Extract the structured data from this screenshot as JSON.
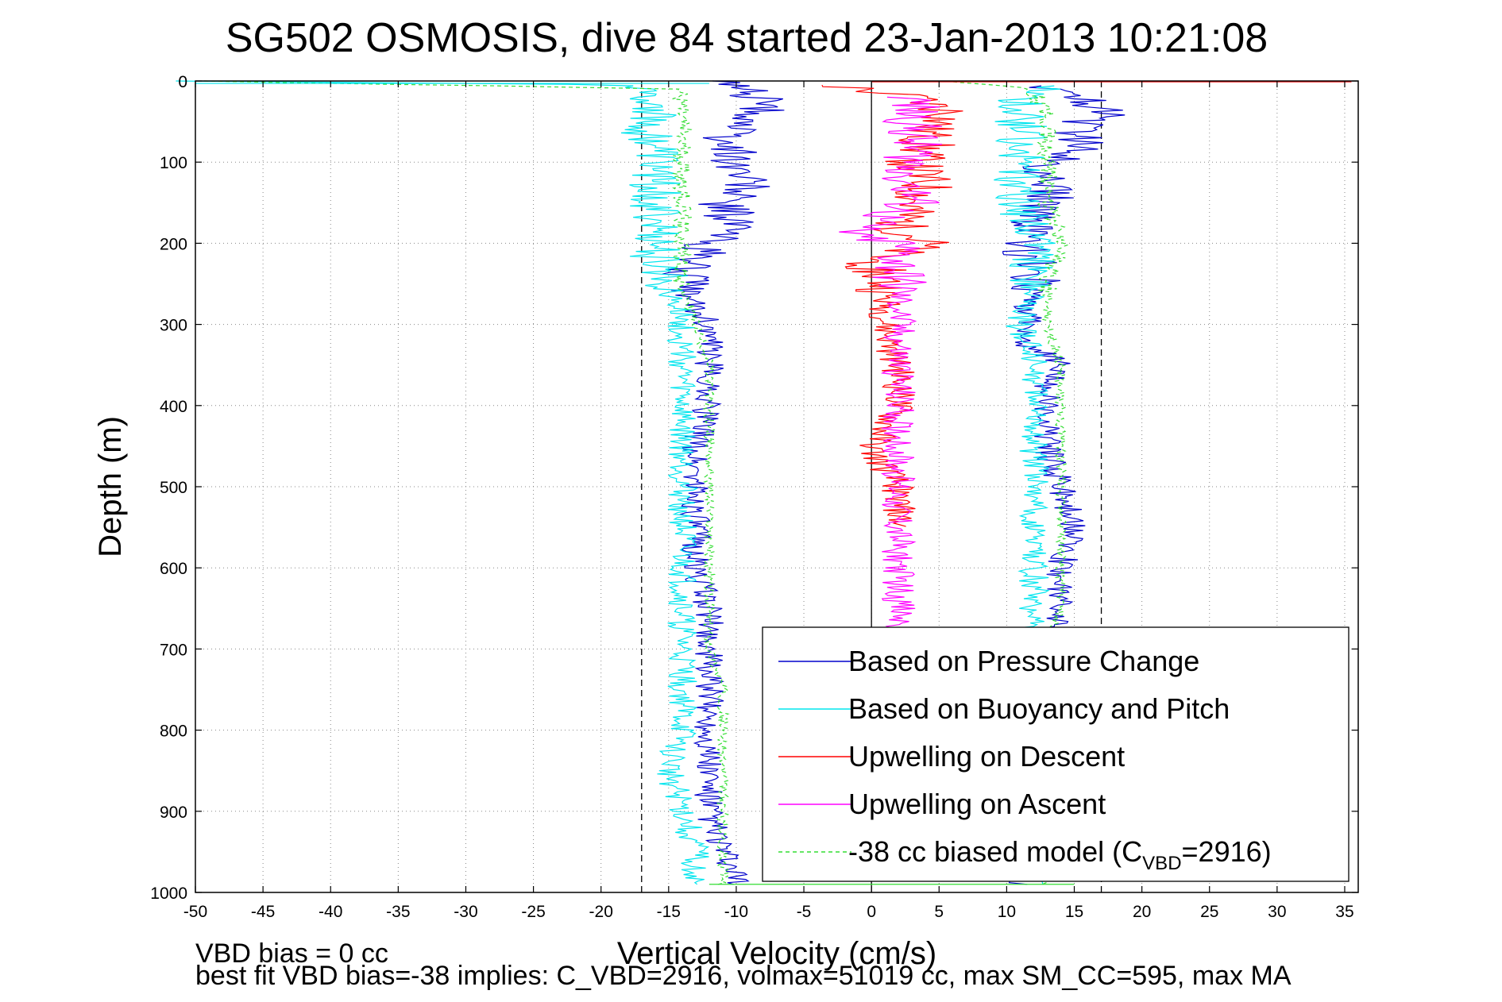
{
  "chart_data": {
    "type": "line",
    "title": "SG502 OSMOSIS, dive 84 started 23-Jan-2013 10:21:08",
    "xlabel": "Vertical Velocity (cm/s)",
    "ylabel": "Depth (m)",
    "xlim": [
      -50,
      36
    ],
    "ylim": [
      0,
      1000
    ],
    "y_reversed": true,
    "grid": true,
    "legend_position": "bottom-right",
    "x_ticks": [
      "-50",
      "-45",
      "-40",
      "-35",
      "-30",
      "-25",
      "-20",
      "-15",
      "-10",
      "-5",
      "0",
      "5",
      "10",
      "15",
      "20",
      "25",
      "30",
      "35"
    ],
    "y_ticks": [
      "0",
      "100",
      "200",
      "300",
      "400",
      "500",
      "600",
      "700",
      "800",
      "900",
      "1000"
    ],
    "x_tick_values": [
      -50,
      -45,
      -40,
      -35,
      -30,
      -25,
      -20,
      -15,
      -10,
      -5,
      0,
      5,
      10,
      15,
      20,
      25,
      30,
      35
    ],
    "y_tick_values": [
      0,
      100,
      200,
      300,
      400,
      500,
      600,
      700,
      800,
      900,
      1000
    ],
    "reference_lines": [
      {
        "x": -17,
        "style": "dashed",
        "color": "#000000"
      },
      {
        "x": 17,
        "style": "dashed",
        "color": "#000000"
      },
      {
        "x": 0,
        "style": "solid",
        "color": "#000000"
      }
    ],
    "series": [
      {
        "name": "Based on Pressure Change",
        "color": "#0000cc",
        "style": "solid",
        "points": [
          {
            "depth": [
              0,
              340
            ],
            "x": [
              -12,
              -8,
              -9,
              -13,
              -11,
              -9,
              -12,
              -10,
              -15,
              -14,
              -13,
              -12,
              -13,
              -12,
              -12
            ],
            "tops": [
              0,
              10,
              40,
              90,
              130,
              170,
              200,
              230,
              260,
              290,
              320,
              340
            ]
          },
          {
            "depth": [
              0,
              1000
            ],
            "x": [
              -16,
              -11,
              -10,
              -12,
              -11,
              -14,
              -13,
              -12,
              -13,
              -12,
              -12,
              -13,
              -12,
              -11,
              -11,
              -11,
              -10
            ]
          }
        ],
        "descent": {
          "depth": [
            0,
            10,
            30,
            50,
            70,
            100,
            130,
            150,
            180,
            200,
            220,
            250,
            280,
            300,
            330,
            350,
            380,
            400,
            450,
            500,
            550,
            600,
            650,
            700,
            750,
            800,
            850,
            900,
            950,
            985,
            990
          ],
          "x": [
            -12,
            -9,
            -8,
            -9,
            -11,
            -10,
            -9,
            -11,
            -10,
            -12,
            -13,
            -14,
            -13,
            -12,
            -12,
            -12,
            -12,
            -12,
            -13,
            -13,
            -13,
            -13,
            -12,
            -12,
            -12,
            -12,
            -12,
            -12,
            -11,
            -10,
            -10
          ]
        },
        "ascent": {
          "depth": [
            990,
            950,
            900,
            850,
            800,
            750,
            700,
            650,
            600,
            550,
            500,
            450,
            400,
            370,
            350,
            320,
            300,
            280,
            250,
            220,
            200,
            180,
            150,
            120,
            100,
            80,
            60,
            40,
            20,
            5
          ],
          "x": [
            11,
            12,
            13,
            13,
            14,
            14,
            14,
            14,
            14,
            15,
            14,
            13,
            13,
            13,
            14,
            11,
            12,
            11,
            12,
            12,
            11,
            12,
            13,
            13,
            13,
            16,
            15,
            17,
            16,
            12
          ]
        }
      },
      {
        "name": "Based on Buoyancy and Pitch",
        "color": "#00e5ee",
        "style": "solid",
        "descent": {
          "depth": [
            0,
            5,
            20,
            40,
            60,
            80,
            100,
            130,
            150,
            180,
            200,
            220,
            250,
            300,
            350,
            400,
            500,
            600,
            700,
            800,
            850,
            900,
            950,
            990
          ],
          "x": [
            -50,
            -17,
            -16,
            -16,
            -17,
            -16,
            -16,
            -16,
            -16,
            -16,
            -16,
            -16,
            -15,
            -14,
            -14,
            -14,
            -14,
            -14,
            -14,
            -14,
            -15,
            -14,
            -13,
            -13
          ]
        },
        "ascent": {
          "depth": [
            990,
            900,
            800,
            700,
            600,
            500,
            400,
            350,
            300,
            250,
            200,
            150,
            100,
            50,
            20,
            5
          ],
          "x": [
            12,
            12,
            12,
            12,
            12,
            12,
            12,
            12,
            11,
            12,
            12,
            11,
            11,
            11,
            11,
            13
          ]
        }
      },
      {
        "name": "Upwelling on Descent",
        "color": "#ff0000",
        "style": "solid",
        "depth": [
          5,
          20,
          40,
          60,
          80,
          100,
          130,
          150,
          180,
          200,
          220,
          250,
          300,
          360,
          400,
          455,
          500,
          550
        ],
        "x": [
          -3,
          3,
          6,
          4,
          4,
          3,
          4,
          3,
          2,
          4,
          0,
          1,
          1,
          2,
          2,
          0,
          2,
          2
        ]
      },
      {
        "name": "Upwelling on Ascent",
        "color": "#ff00ff",
        "style": "solid",
        "depth": [
          20,
          50,
          100,
          150,
          190,
          200,
          250,
          300,
          350,
          400,
          450,
          500,
          550,
          600,
          650,
          680
        ],
        "x": [
          3,
          3,
          3,
          3,
          -2,
          2,
          2,
          2,
          2,
          2,
          2,
          2,
          2,
          2,
          2,
          2
        ]
      },
      {
        "name": "-38 cc biased model (C_VBD=2916)",
        "legend_main": "-38 cc biased model (C",
        "legend_sub": "VBD",
        "legend_end": "=2916)",
        "color": "#33dd33",
        "style": "dashed",
        "descent": {
          "depth": [
            0,
            10,
            50,
            100,
            150,
            200,
            250,
            300,
            350,
            400,
            450,
            500,
            550,
            600,
            650,
            700,
            750,
            800,
            850,
            900,
            950,
            990
          ],
          "x": [
            -50,
            -14,
            -14,
            -14,
            -14,
            -14,
            -14,
            -13,
            -12,
            -12,
            -12,
            -12,
            -12,
            -12,
            -12,
            -12,
            -11,
            -11,
            -11,
            -11,
            -11,
            -11
          ]
        },
        "ascent": {
          "depth": [
            990,
            950,
            900,
            850,
            800,
            750,
            700,
            650,
            600,
            550,
            500,
            450,
            400,
            350,
            300,
            250,
            200,
            150,
            100,
            50,
            10,
            0
          ],
          "x": [
            13,
            13,
            13,
            13,
            13,
            13,
            13,
            14,
            14,
            14,
            14,
            14,
            14,
            14,
            13,
            13,
            14,
            13,
            13,
            13,
            12,
            5
          ]
        }
      }
    ]
  },
  "footer": {
    "line1": "VBD bias = 0 cc",
    "line2": "best fit VBD bias=-38 implies: C_VBD=2916, volmax=51019 cc, max SM_CC=595, max MA"
  }
}
